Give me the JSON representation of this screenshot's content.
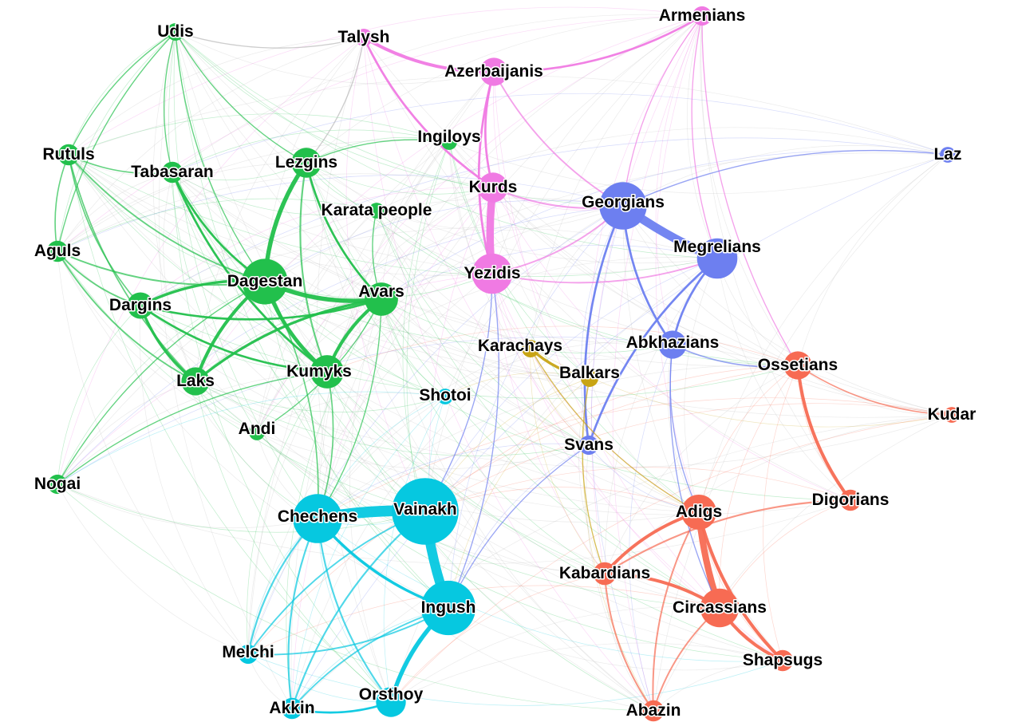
{
  "groups": {
    "dagestan": "#22c04c",
    "armenian_highland": "#f07ae3",
    "kartvelian": "#6d7ff0",
    "vainakh": "#06c8e0",
    "adyghe_ossetian": "#f76b53",
    "turkic_karachay": "#c8a414",
    "background": "#b8b8b8"
  },
  "nodes": [
    {
      "id": "Udis",
      "label": "Udis",
      "group": "dagestan",
      "size": 1
    },
    {
      "id": "Talysh",
      "label": "Talysh",
      "group": "armenian_highland",
      "size": 1
    },
    {
      "id": "Armenians",
      "label": "Armenians",
      "group": "armenian_highland",
      "size": 1.1
    },
    {
      "id": "Azerbaijanis",
      "label": "Azerbaijanis",
      "group": "armenian_highland",
      "size": 1.6
    },
    {
      "id": "Ingiloys",
      "label": "Ingiloys",
      "group": "dagestan",
      "size": 0.9
    },
    {
      "id": "Laz",
      "label": "Laz",
      "group": "kartvelian",
      "size": 0.9
    },
    {
      "id": "Rutuls",
      "label": "Rutuls",
      "group": "dagestan",
      "size": 1.2
    },
    {
      "id": "Tabasaran",
      "label": "Tabasaran",
      "group": "dagestan",
      "size": 1.2
    },
    {
      "id": "Lezgins",
      "label": "Lezgins",
      "group": "dagestan",
      "size": 1.7
    },
    {
      "id": "Kurds",
      "label": "Kurds",
      "group": "armenian_highland",
      "size": 1.7
    },
    {
      "id": "Karata people",
      "label": "Karata people",
      "group": "dagestan",
      "size": 0.9
    },
    {
      "id": "Georgians",
      "label": "Georgians",
      "group": "kartvelian",
      "size": 2.7
    },
    {
      "id": "Aguls",
      "label": "Aguls",
      "group": "dagestan",
      "size": 1.2
    },
    {
      "id": "Megrelians",
      "label": "Megrelians",
      "group": "kartvelian",
      "size": 2.3
    },
    {
      "id": "Dagestan",
      "label": "Dagestan",
      "group": "dagestan",
      "size": 2.6
    },
    {
      "id": "Yezidis",
      "label": "Yezidis",
      "group": "armenian_highland",
      "size": 2.3
    },
    {
      "id": "Avars",
      "label": "Avars",
      "group": "dagestan",
      "size": 1.9
    },
    {
      "id": "Dargins",
      "label": "Dargins",
      "group": "dagestan",
      "size": 1.5
    },
    {
      "id": "Karachays",
      "label": "Karachays",
      "group": "turkic_karachay",
      "size": 1.0
    },
    {
      "id": "Abkhazians",
      "label": "Abkhazians",
      "group": "kartvelian",
      "size": 1.6
    },
    {
      "id": "Ossetians",
      "label": "Ossetians",
      "group": "adyghe_ossetian",
      "size": 1.6
    },
    {
      "id": "Balkars",
      "label": "Balkars",
      "group": "turkic_karachay",
      "size": 1.0
    },
    {
      "id": "Kumyks",
      "label": "Kumyks",
      "group": "dagestan",
      "size": 1.9
    },
    {
      "id": "Laks",
      "label": "Laks",
      "group": "dagestan",
      "size": 1.6
    },
    {
      "id": "Shotoi",
      "label": "Shotoi",
      "group": "vainakh",
      "size": 0.9
    },
    {
      "id": "Kudar",
      "label": "Kudar",
      "group": "adyghe_ossetian",
      "size": 0.9
    },
    {
      "id": "Andi",
      "label": "Andi",
      "group": "dagestan",
      "size": 0.9
    },
    {
      "id": "Svans",
      "label": "Svans",
      "group": "kartvelian",
      "size": 1.1
    },
    {
      "id": "Nogai",
      "label": "Nogai",
      "group": "dagestan",
      "size": 1.1
    },
    {
      "id": "Digorians",
      "label": "Digorians",
      "group": "adyghe_ossetian",
      "size": 1.2
    },
    {
      "id": "Adigs",
      "label": "Adigs",
      "group": "adyghe_ossetian",
      "size": 2.0
    },
    {
      "id": "Chechens",
      "label": "Chechens",
      "group": "vainakh",
      "size": 2.8
    },
    {
      "id": "Vainakh",
      "label": "Vainakh",
      "group": "vainakh",
      "size": 3.8
    },
    {
      "id": "Kabardians",
      "label": "Kabardians",
      "group": "adyghe_ossetian",
      "size": 1.3
    },
    {
      "id": "Ingush",
      "label": "Ingush",
      "group": "vainakh",
      "size": 3.1
    },
    {
      "id": "Circassians",
      "label": "Circassians",
      "group": "adyghe_ossetian",
      "size": 2.2
    },
    {
      "id": "Melchi",
      "label": "Melchi",
      "group": "vainakh",
      "size": 1.1
    },
    {
      "id": "Shapsugs",
      "label": "Shapsugs",
      "group": "adyghe_ossetian",
      "size": 1.2
    },
    {
      "id": "Akkin",
      "label": "Akkin",
      "group": "vainakh",
      "size": 1.2
    },
    {
      "id": "Orsthoy",
      "label": "Orsthoy",
      "group": "vainakh",
      "size": 1.7
    },
    {
      "id": "Abazin",
      "label": "Abazin",
      "group": "adyghe_ossetian",
      "size": 1.2
    }
  ],
  "edges": [
    [
      "Vainakh",
      "Chechens",
      10,
      "vainakh"
    ],
    [
      "Vainakh",
      "Ingush",
      9,
      "vainakh"
    ],
    [
      "Georgians",
      "Megrelians",
      8,
      "kartvelian"
    ],
    [
      "Kurds",
      "Yezidis",
      7,
      "armenian_highland"
    ],
    [
      "Adigs",
      "Circassians",
      6,
      "adyghe_ossetian"
    ],
    [
      "Ingush",
      "Orsthoy",
      4,
      "vainakh"
    ],
    [
      "Chechens",
      "Ingush",
      2.5,
      "vainakh"
    ],
    [
      "Lezgins",
      "Dagestan",
      4,
      "dagestan"
    ],
    [
      "Dagestan",
      "Avars",
      4,
      "dagestan"
    ],
    [
      "Dagestan",
      "Kumyks",
      3.5,
      "dagestan"
    ],
    [
      "Dagestan",
      "Laks",
      3,
      "dagestan"
    ],
    [
      "Avars",
      "Kumyks",
      3,
      "dagestan"
    ],
    [
      "Avars",
      "Laks",
      2.5,
      "dagestan"
    ],
    [
      "Dagestan",
      "Dargins",
      2.5,
      "dagestan"
    ],
    [
      "Dargins",
      "Laks",
      2.5,
      "dagestan"
    ],
    [
      "Dargins",
      "Avars",
      2,
      "dagestan"
    ],
    [
      "Dargins",
      "Kumyks",
      2,
      "dagestan"
    ],
    [
      "Tabasaran",
      "Dagestan",
      2,
      "dagestan"
    ],
    [
      "Tabasaran",
      "Kumyks",
      2,
      "dagestan"
    ],
    [
      "Lezgins",
      "Avars",
      2,
      "dagestan"
    ],
    [
      "Lezgins",
      "Kumyks",
      1.6,
      "dagestan"
    ],
    [
      "Aguls",
      "Dagestan",
      1.5,
      "dagestan"
    ],
    [
      "Aguls",
      "Laks",
      1.4,
      "dagestan"
    ],
    [
      "Aguls",
      "Dargins",
      1.4,
      "dagestan"
    ],
    [
      "Rutuls",
      "Dagestan",
      1.4,
      "dagestan"
    ],
    [
      "Rutuls",
      "Tabasaran",
      1.2,
      "dagestan"
    ],
    [
      "Rutuls",
      "Aguls",
      1.2,
      "dagestan"
    ],
    [
      "Rutuls",
      "Laks",
      1.2,
      "dagestan"
    ],
    [
      "Rutuls",
      "Dargins",
      1.2,
      "dagestan"
    ],
    [
      "Udis",
      "Tabasaran",
      1,
      "dagestan"
    ],
    [
      "Udis",
      "Aguls",
      1,
      "dagestan"
    ],
    [
      "Udis",
      "Rutuls",
      1,
      "dagestan"
    ],
    [
      "Udis",
      "Lezgins",
      1,
      "dagestan"
    ],
    [
      "Udis",
      "Dagestan",
      1,
      "dagestan"
    ],
    [
      "Talysh",
      "Azerbaijanis",
      3,
      "armenian_highland"
    ],
    [
      "Azerbaijanis",
      "Armenians",
      2,
      "armenian_highland"
    ],
    [
      "Azerbaijanis",
      "Kurds",
      2,
      "armenian_highland"
    ],
    [
      "Azerbaijanis",
      "Yezidis",
      2,
      "armenian_highland"
    ],
    [
      "Talysh",
      "Kurds",
      2,
      "armenian_highland"
    ],
    [
      "Kurds",
      "Georgians",
      1.6,
      "armenian_highland"
    ],
    [
      "Yezidis",
      "Georgians",
      1.4,
      "armenian_highland"
    ],
    [
      "Yezidis",
      "Megrelians",
      1.4,
      "armenian_highland"
    ],
    [
      "Azerbaijanis",
      "Georgians",
      1.4,
      "armenian_highland"
    ],
    [
      "Georgians",
      "Abkhazians",
      2,
      "kartvelian"
    ],
    [
      "Megrelians",
      "Abkhazians",
      2,
      "kartvelian"
    ],
    [
      "Georgians",
      "Svans",
      2,
      "kartvelian"
    ],
    [
      "Megrelians",
      "Svans",
      2,
      "kartvelian"
    ],
    [
      "Abkhazians",
      "Ossetians",
      1.2,
      "kartvelian"
    ],
    [
      "Karachays",
      "Balkars",
      2.5,
      "turkic_karachay"
    ],
    [
      "Ossetians",
      "Digorians",
      3,
      "adyghe_ossetian"
    ],
    [
      "Ossetians",
      "Kudar",
      1.2,
      "adyghe_ossetian"
    ],
    [
      "Adigs",
      "Kabardians",
      3,
      "adyghe_ossetian"
    ],
    [
      "Adigs",
      "Shapsugs",
      3,
      "adyghe_ossetian"
    ],
    [
      "Circassians",
      "Kabardians",
      3,
      "adyghe_ossetian"
    ],
    [
      "Circassians",
      "Shapsugs",
      3,
      "adyghe_ossetian"
    ],
    [
      "Digorians",
      "Kabardians",
      1.6,
      "adyghe_ossetian"
    ],
    [
      "Kabardians",
      "Abazin",
      1.5,
      "adyghe_ossetian"
    ],
    [
      "Circassians",
      "Abazin",
      1.5,
      "adyghe_ossetian"
    ],
    [
      "Adigs",
      "Abazin",
      1.5,
      "adyghe_ossetian"
    ],
    [
      "Chechens",
      "Melchi",
      1.6,
      "vainakh"
    ],
    [
      "Chechens",
      "Akkin",
      1.6,
      "vainakh"
    ],
    [
      "Chechens",
      "Orsthoy",
      1.6,
      "vainakh"
    ],
    [
      "Vainakh",
      "Akkin",
      1.6,
      "vainakh"
    ],
    [
      "Vainakh",
      "Melchi",
      1.4,
      "vainakh"
    ],
    [
      "Ingush",
      "Akkin",
      1.4,
      "vainakh"
    ],
    [
      "Akkin",
      "Orsthoy",
      2,
      "vainakh"
    ],
    [
      "Melchi",
      "Ingush",
      1.4,
      "vainakh"
    ],
    [
      "Chechens",
      "Kumyks",
      1.2,
      "dagestan"
    ],
    [
      "Chechens",
      "Dagestan",
      1.2,
      "dagestan"
    ],
    [
      "Chechens",
      "Avars",
      1,
      "dagestan"
    ],
    [
      "Vainakh",
      "Yezidis",
      1,
      "kartvelian"
    ],
    [
      "Ingush",
      "Yezidis",
      1,
      "kartvelian"
    ],
    [
      "Svans",
      "Ingush",
      1,
      "kartvelian"
    ],
    [
      "Lezgins",
      "Talysh",
      1,
      "background"
    ],
    [
      "Udis",
      "Talysh",
      1,
      "background"
    ],
    [
      "Armenians",
      "Megrelians",
      1,
      "armenian_highland"
    ],
    [
      "Armenians",
      "Ossetians",
      1,
      "armenian_highland"
    ],
    [
      "Armenians",
      "Georgians",
      1,
      "armenian_highland"
    ],
    [
      "Laz",
      "Georgians",
      1,
      "kartvelian"
    ],
    [
      "Abkhazians",
      "Circassians",
      1,
      "kartvelian"
    ],
    [
      "Abkhazians",
      "Adigs",
      1,
      "kartvelian"
    ],
    [
      "Balkars",
      "Kabardians",
      1,
      "turkic_karachay"
    ],
    [
      "Karachays",
      "Adigs",
      1,
      "turkic_karachay"
    ],
    [
      "Kumyks",
      "Nogai",
      1,
      "dagestan"
    ],
    [
      "Dagestan",
      "Nogai",
      1,
      "dagestan"
    ],
    [
      "Andi",
      "Avars",
      1,
      "dagestan"
    ],
    [
      "Karata people",
      "Avars",
      1,
      "dagestan"
    ],
    [
      "Ingiloys",
      "Lezgins",
      1,
      "dagestan"
    ]
  ]
}
